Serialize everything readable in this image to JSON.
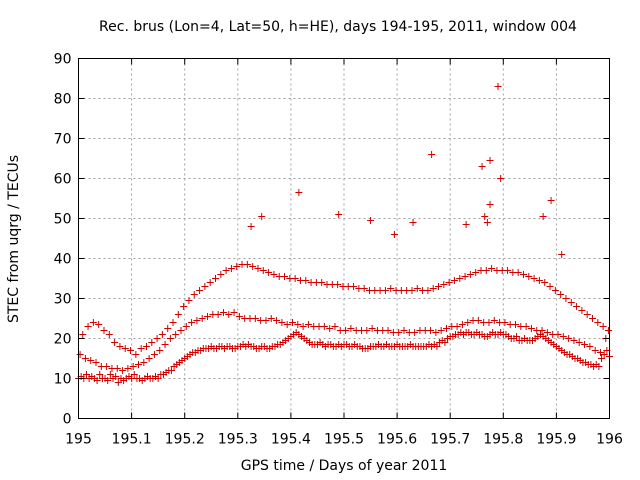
{
  "chart_data": {
    "type": "scatter",
    "title": "Rec. brus (Lon=4, Lat=50, h=HE), days 194-195, 2011, window 004",
    "xlabel": "GPS time / Days of year 2011",
    "ylabel": "STEC from uqrg / TECUs",
    "xlim": [
      195,
      196
    ],
    "ylim": [
      0,
      90
    ],
    "xticks": [
      195,
      195.1,
      195.2,
      195.3,
      195.4,
      195.5,
      195.6,
      195.7,
      195.8,
      195.9,
      196
    ],
    "xtick_labels": [
      "195",
      "195.1",
      "195.2",
      "195.3",
      "195.4",
      "195.5",
      "195.6",
      "195.7",
      "195.8",
      "195.9",
      "196"
    ],
    "yticks": [
      0,
      10,
      20,
      30,
      40,
      50,
      60,
      70,
      80,
      90
    ],
    "ytick_labels": [
      "0",
      "10",
      "20",
      "30",
      "40",
      "50",
      "60",
      "70",
      "80",
      "90"
    ],
    "grid": true,
    "marker": "+",
    "color": "#d40000",
    "x": [
      195.0,
      195.005,
      195.01,
      195.015,
      195.02,
      195.025,
      195.03,
      195.035,
      195.04,
      195.045,
      195.05,
      195.055,
      195.06,
      195.065,
      195.07,
      195.075,
      195.08,
      195.085,
      195.09,
      195.095,
      195.1,
      195.105,
      195.11,
      195.115,
      195.12,
      195.125,
      195.13,
      195.135,
      195.14,
      195.145,
      195.15,
      195.155,
      195.16,
      195.165,
      195.17,
      195.175,
      195.18,
      195.185,
      195.19,
      195.195,
      195.2,
      195.205,
      195.21,
      195.215,
      195.22,
      195.225,
      195.23,
      195.235,
      195.24,
      195.245,
      195.25,
      195.255,
      195.26,
      195.265,
      195.27,
      195.275,
      195.28,
      195.285,
      195.29,
      195.295,
      195.3,
      195.305,
      195.31,
      195.315,
      195.32,
      195.325,
      195.33,
      195.335,
      195.34,
      195.345,
      195.35,
      195.355,
      195.36,
      195.365,
      195.37,
      195.375,
      195.38,
      195.385,
      195.39,
      195.395,
      195.4,
      195.405,
      195.41,
      195.415,
      195.42,
      195.425,
      195.43,
      195.435,
      195.44,
      195.445,
      195.45,
      195.455,
      195.46,
      195.465,
      195.47,
      195.475,
      195.48,
      195.485,
      195.49,
      195.495,
      195.5,
      195.505,
      195.51,
      195.515,
      195.52,
      195.525,
      195.53,
      195.535,
      195.54,
      195.545,
      195.55,
      195.555,
      195.56,
      195.565,
      195.57,
      195.575,
      195.58,
      195.585,
      195.59,
      195.595,
      195.6,
      195.605,
      195.61,
      195.615,
      195.62,
      195.625,
      195.63,
      195.635,
      195.64,
      195.645,
      195.65,
      195.655,
      195.66,
      195.665,
      195.67,
      195.675,
      195.68,
      195.685,
      195.69,
      195.695,
      195.7,
      195.705,
      195.71,
      195.715,
      195.72,
      195.725,
      195.73,
      195.735,
      195.74,
      195.745,
      195.75,
      195.755,
      195.76,
      195.765,
      195.77,
      195.775,
      195.78,
      195.785,
      195.79,
      195.795,
      195.8,
      195.805,
      195.81,
      195.815,
      195.82,
      195.825,
      195.83,
      195.835,
      195.84,
      195.845,
      195.85,
      195.855,
      195.86,
      195.865,
      195.87,
      195.875,
      195.88,
      195.885,
      195.89,
      195.895,
      195.9,
      195.905,
      195.91,
      195.915,
      195.92,
      195.925,
      195.93,
      195.935,
      195.94,
      195.945,
      195.95,
      195.955,
      195.96,
      195.965,
      195.97,
      195.975,
      195.98,
      195.985,
      195.99,
      195.995,
      196.0,
      195.003,
      195.013,
      195.023,
      195.033,
      195.043,
      195.053,
      195.063,
      195.073,
      195.083,
      195.093,
      195.103,
      195.113,
      195.123,
      195.133,
      195.143,
      195.153,
      195.163,
      195.173,
      195.183,
      195.193,
      195.203,
      195.213,
      195.223,
      195.233,
      195.243,
      195.253,
      195.263,
      195.273,
      195.283,
      195.293,
      195.303,
      195.313,
      195.323,
      195.333,
      195.343,
      195.353,
      195.363,
      195.373,
      195.383,
      195.393,
      195.403,
      195.413,
      195.423,
      195.433,
      195.443,
      195.453,
      195.463,
      195.473,
      195.483,
      195.493,
      195.503,
      195.513,
      195.523,
      195.533,
      195.543,
      195.553,
      195.563,
      195.573,
      195.583,
      195.593,
      195.603,
      195.613,
      195.623,
      195.633,
      195.643,
      195.653,
      195.663,
      195.673,
      195.683,
      195.693,
      195.703,
      195.713,
      195.723,
      195.733,
      195.743,
      195.753,
      195.763,
      195.773,
      195.783,
      195.793,
      195.803,
      195.813,
      195.823,
      195.833,
      195.843,
      195.853,
      195.863,
      195.873,
      195.883,
      195.893,
      195.903,
      195.913,
      195.923,
      195.933,
      195.943,
      195.953,
      195.963,
      195.973,
      195.983,
      195.993,
      195.008,
      195.018,
      195.028,
      195.038,
      195.048,
      195.058,
      195.068,
      195.078,
      195.088,
      195.098,
      195.108,
      195.118,
      195.128,
      195.138,
      195.148,
      195.158,
      195.168,
      195.178,
      195.188,
      195.198,
      195.208,
      195.218,
      195.228,
      195.238,
      195.248,
      195.258,
      195.268,
      195.278,
      195.288,
      195.298,
      195.308,
      195.318,
      195.328,
      195.338,
      195.348,
      195.358,
      195.368,
      195.378,
      195.388,
      195.398,
      195.408,
      195.418,
      195.428,
      195.438,
      195.448,
      195.458,
      195.468,
      195.478,
      195.488,
      195.498,
      195.508,
      195.518,
      195.528,
      195.538,
      195.548,
      195.558,
      195.568,
      195.578,
      195.588,
      195.598,
      195.608,
      195.618,
      195.628,
      195.638,
      195.648,
      195.658,
      195.668,
      195.678,
      195.688,
      195.698,
      195.708,
      195.718,
      195.728,
      195.738,
      195.748,
      195.758,
      195.768,
      195.778,
      195.788,
      195.798,
      195.808,
      195.818,
      195.828,
      195.838,
      195.848,
      195.858,
      195.868,
      195.878,
      195.888,
      195.898,
      195.908,
      195.918,
      195.928,
      195.938,
      195.948,
      195.958,
      195.968,
      195.978,
      195.988,
      195.998,
      195.415,
      195.49,
      195.55,
      195.595,
      195.665,
      195.73,
      195.76,
      195.775,
      195.79,
      195.795,
      195.775,
      195.765,
      195.89,
      195.875,
      195.345,
      195.325,
      195.91,
      195.77,
      195.63
    ],
    "y": [
      10,
      10.5,
      10,
      11,
      10,
      10.5,
      10,
      9.5,
      11,
      10,
      10,
      9.5,
      11,
      10,
      10.5,
      9,
      10,
      9.5,
      10,
      10.5,
      10,
      11,
      10,
      10,
      9.5,
      10,
      10.5,
      10,
      10,
      10.5,
      10,
      11,
      11,
      11.5,
      12,
      12,
      13,
      13.5,
      14,
      14.5,
      15,
      15.5,
      16,
      16.5,
      16.5,
      17,
      17,
      17.5,
      17.5,
      17.5,
      18,
      17.5,
      17.5,
      18,
      18,
      17.5,
      18,
      18,
      17.5,
      17.5,
      18,
      18,
      18.5,
      18,
      18.5,
      18,
      18,
      17.5,
      17.5,
      18,
      18,
      17.5,
      17.5,
      18,
      18,
      18.5,
      18.5,
      19,
      19.5,
      20,
      20.5,
      21,
      21.5,
      21,
      20.5,
      20,
      19.5,
      19,
      18.5,
      18.5,
      18.5,
      19,
      18.5,
      18,
      18.5,
      18.5,
      18,
      18,
      18.5,
      18,
      18.5,
      18.5,
      18,
      18,
      18.5,
      18,
      18,
      17.5,
      17.5,
      17.5,
      18,
      18,
      18,
      18.5,
      18,
      18,
      18.5,
      18,
      18,
      18,
      18.5,
      18,
      18,
      18,
      18,
      18.5,
      18,
      18,
      18,
      18,
      18,
      18,
      18.5,
      18,
      18.5,
      18,
      19,
      19.5,
      19,
      20,
      20.5,
      20.5,
      21,
      21,
      21.5,
      21,
      21.5,
      21.5,
      21,
      21,
      21.5,
      21,
      21,
      20.5,
      20.5,
      21,
      21.5,
      21,
      21,
      21.5,
      21,
      21,
      20.5,
      20,
      20,
      20.5,
      19.5,
      19.5,
      20,
      19.5,
      19.5,
      19.5,
      20,
      20.5,
      21,
      20.5,
      20,
      19.5,
      19,
      18.5,
      18,
      17.5,
      17,
      16.5,
      16,
      16,
      15.5,
      15,
      15,
      14.5,
      14,
      14,
      13.5,
      13.5,
      13,
      13.5,
      13,
      15,
      16,
      17,
      15.5,
      16,
      15,
      14.5,
      14,
      13,
      13,
      12.5,
      12.5,
      12,
      12.5,
      13,
      13.5,
      14,
      15,
      16,
      17,
      18.5,
      20,
      21,
      22,
      23,
      24,
      24.5,
      25,
      25.5,
      26,
      26,
      26.5,
      26,
      26.5,
      25.5,
      25,
      25,
      25,
      24.5,
      24.5,
      25,
      24.5,
      24,
      23.5,
      24,
      23.5,
      23,
      23.5,
      23,
      23,
      23,
      22.5,
      23,
      22,
      22,
      22.5,
      22,
      22,
      22,
      22.5,
      22,
      22,
      22,
      21.5,
      21.5,
      22,
      21.5,
      21.5,
      22,
      22,
      22,
      21.5,
      22,
      22.5,
      23,
      23,
      23.5,
      24,
      24.5,
      24.5,
      24,
      24,
      24.5,
      24,
      24,
      23.5,
      23.5,
      23,
      23,
      22.5,
      22,
      22,
      21.5,
      21,
      21,
      20.5,
      20,
      19.5,
      19,
      18.5,
      18,
      17,
      16.5,
      20,
      21,
      23,
      24,
      23.5,
      22,
      21,
      19,
      18,
      17.5,
      17,
      16,
      17.5,
      18,
      19,
      20,
      21,
      22.5,
      24,
      26,
      28,
      29.5,
      31,
      32,
      33,
      34,
      35,
      36,
      37,
      37.5,
      38,
      38.5,
      38.5,
      38,
      37.5,
      37,
      36.5,
      36,
      35.5,
      35.5,
      35,
      35,
      34.5,
      34.5,
      34,
      34,
      34,
      33.5,
      33.5,
      33.5,
      33,
      33,
      33,
      32.5,
      32.5,
      32,
      32,
      32,
      32,
      32.5,
      32,
      32,
      32,
      32,
      32.5,
      32,
      32,
      32.5,
      33,
      33.5,
      34,
      34.5,
      35,
      35.5,
      36,
      36.5,
      37,
      37,
      37.5,
      37,
      37,
      37,
      36.5,
      36.5,
      36,
      35.5,
      35,
      34.5,
      34,
      33,
      32,
      31,
      30,
      29,
      28,
      27,
      26,
      25,
      24,
      23,
      22,
      56.5,
      51,
      49.5,
      46,
      66,
      48.5,
      63,
      53.5,
      83,
      60,
      64.5,
      50.5,
      54.5,
      50.5,
      50.5,
      48,
      41,
      49,
      49
    ]
  }
}
